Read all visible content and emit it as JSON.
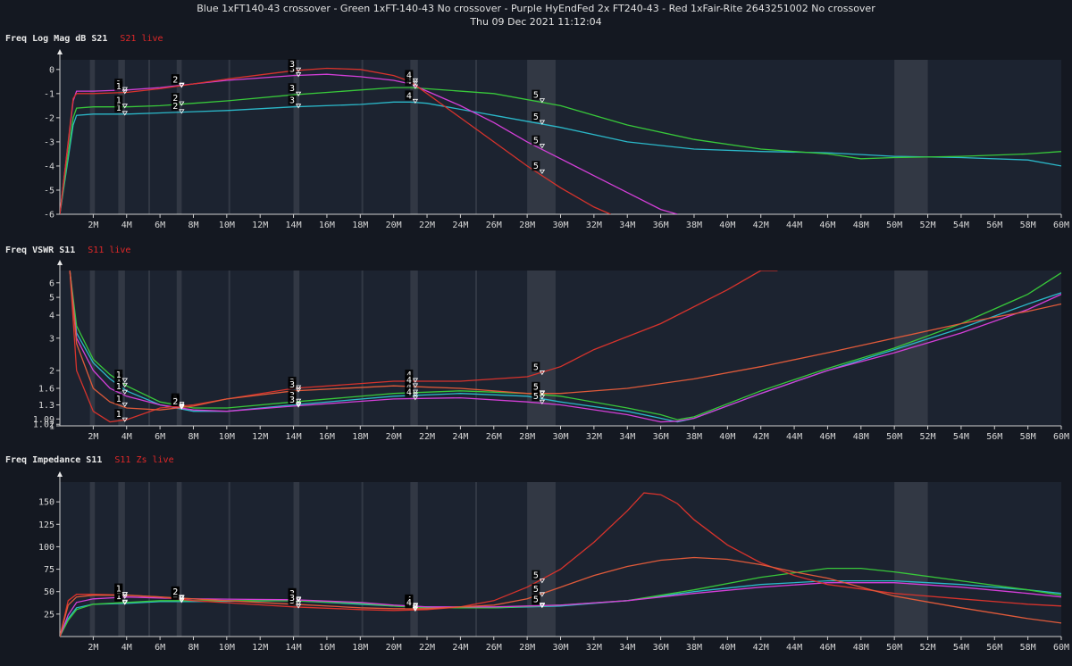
{
  "header": {
    "title": "Blue 1xFT140-43 crossover - Green 1xFT-140-43 No crossover - Purple HyEndFed 2x FT240-43 - Red 1xFair-Rite 2643251002 No crossover",
    "timestamp": "Thu 09 Dec 2021 11:12:04"
  },
  "colors": {
    "background": "#141821",
    "plot_bg": "#1c2330",
    "band": "#3a404b",
    "blue": "#2bb8c9",
    "green": "#38c83a",
    "purple": "#d43fd8",
    "red": "#d7332c",
    "orange": "#e05a3a"
  },
  "chart_data": [
    {
      "type": "line",
      "name_label": "Freq Log Mag dB S21",
      "live_label": "S21 live",
      "xlim": [
        0,
        60
      ],
      "x_unit": "MHz",
      "xticks": [
        "2M",
        "4M",
        "6M",
        "8M",
        "10M",
        "12M",
        "14M",
        "16M",
        "18M",
        "20M",
        "22M",
        "24M",
        "26M",
        "28M",
        "30M",
        "32M",
        "34M",
        "36M",
        "38M",
        "40M",
        "42M",
        "44M",
        "46M",
        "48M",
        "50M",
        "52M",
        "54M",
        "56M",
        "58M",
        "60M"
      ],
      "ylim": [
        -6,
        0.4
      ],
      "yticks": [
        "0",
        "-1",
        "-2",
        "-3",
        "-4",
        "-5",
        "-6"
      ],
      "series": [
        {
          "color": "blue",
          "x": [
            0,
            0.8,
            1,
            2,
            4,
            6,
            8,
            10,
            14,
            18,
            20,
            21,
            22,
            26,
            30,
            34,
            38,
            42,
            46,
            50,
            54,
            58,
            60
          ],
          "y": [
            -6,
            -2.3,
            -1.9,
            -1.85,
            -1.85,
            -1.8,
            -1.75,
            -1.7,
            -1.55,
            -1.45,
            -1.35,
            -1.35,
            -1.4,
            -1.9,
            -2.4,
            -3.0,
            -3.3,
            -3.4,
            -3.45,
            -3.6,
            -3.65,
            -3.75,
            -4.0
          ]
        },
        {
          "color": "green",
          "x": [
            0,
            0.8,
            1,
            2,
            4,
            6,
            8,
            10,
            14,
            18,
            20,
            21,
            22,
            26,
            30,
            34,
            38,
            42,
            46,
            48,
            50,
            54,
            58,
            60
          ],
          "y": [
            -6,
            -2.0,
            -1.6,
            -1.55,
            -1.55,
            -1.5,
            -1.4,
            -1.3,
            -1.05,
            -0.85,
            -0.75,
            -0.75,
            -0.8,
            -1.0,
            -1.5,
            -2.3,
            -2.9,
            -3.3,
            -3.5,
            -3.7,
            -3.65,
            -3.6,
            -3.5,
            -3.4
          ]
        },
        {
          "color": "purple",
          "x": [
            0,
            0.8,
            1,
            2,
            4,
            6,
            8,
            10,
            14,
            16,
            18,
            20,
            21,
            22,
            24,
            26,
            28,
            30,
            32,
            34,
            36,
            37
          ],
          "y": [
            -6,
            -1.3,
            -0.9,
            -0.9,
            -0.85,
            -0.75,
            -0.6,
            -0.45,
            -0.25,
            -0.2,
            -0.3,
            -0.45,
            -0.6,
            -0.9,
            -1.5,
            -2.2,
            -3.0,
            -3.7,
            -4.4,
            -5.1,
            -5.8,
            -6.0
          ]
        },
        {
          "color": "red",
          "x": [
            0,
            0.8,
            1,
            2,
            4,
            6,
            8,
            10,
            14,
            16,
            18,
            20,
            21,
            22,
            24,
            26,
            28,
            30,
            32,
            33
          ],
          "y": [
            -6,
            -1.2,
            -1.0,
            -1.0,
            -0.95,
            -0.8,
            -0.6,
            -0.4,
            -0.05,
            0.05,
            0.0,
            -0.25,
            -0.5,
            -1.0,
            -2.0,
            -3.0,
            -4.0,
            -4.9,
            -5.7,
            -6.0
          ]
        }
      ],
      "markers": [
        {
          "id": "1",
          "x": 3.6
        },
        {
          "id": "2",
          "x": 7
        },
        {
          "id": "3",
          "x": 14
        },
        {
          "id": "4",
          "x": 21
        },
        {
          "id": "5",
          "x": 28.6
        }
      ]
    },
    {
      "type": "line",
      "name_label": "Freq VSWR S11",
      "live_label": "S11 live",
      "xlim": [
        0,
        60
      ],
      "x_unit": "MHz",
      "xticks": [
        "2M",
        "4M",
        "6M",
        "8M",
        "10M",
        "12M",
        "14M",
        "16M",
        "18M",
        "20M",
        "22M",
        "24M",
        "26M",
        "28M",
        "30M",
        "32M",
        "34M",
        "36M",
        "38M",
        "40M",
        "42M",
        "44M",
        "46M",
        "48M",
        "50M",
        "52M",
        "54M",
        "56M",
        "58M",
        "60M"
      ],
      "ylim": [
        1.0,
        7.0
      ],
      "y_scale": "log",
      "yticks": [
        "6",
        "5",
        "4",
        "3",
        "2",
        "1.6",
        "1.3",
        "1.09",
        "1.02",
        "1"
      ],
      "ytick_values": [
        6,
        5,
        4,
        3,
        2,
        1.6,
        1.3,
        1.09,
        1.02,
        1.0
      ],
      "series": [
        {
          "color": "blue",
          "x": [
            0.6,
            1,
            2,
            3,
            4,
            6,
            8,
            10,
            14,
            20,
            24,
            28,
            30,
            34,
            36,
            37,
            38,
            42,
            46,
            50,
            54,
            58,
            60
          ],
          "y": [
            7,
            3.2,
            2.2,
            1.8,
            1.55,
            1.3,
            1.2,
            1.2,
            1.3,
            1.45,
            1.5,
            1.45,
            1.35,
            1.2,
            1.1,
            1.05,
            1.1,
            1.5,
            2.0,
            2.6,
            3.4,
            4.6,
            5.3
          ]
        },
        {
          "color": "green",
          "x": [
            0.6,
            1,
            2,
            3,
            4,
            6,
            8,
            10,
            14,
            20,
            24,
            28,
            30,
            34,
            36,
            37,
            38,
            42,
            46,
            50,
            54,
            58,
            60
          ],
          "y": [
            7,
            3.5,
            2.3,
            1.9,
            1.65,
            1.35,
            1.25,
            1.25,
            1.35,
            1.5,
            1.55,
            1.5,
            1.45,
            1.25,
            1.15,
            1.08,
            1.12,
            1.55,
            2.05,
            2.65,
            3.6,
            5.2,
            6.8
          ]
        },
        {
          "color": "purple",
          "x": [
            0.6,
            1,
            2,
            3,
            4,
            6,
            8,
            10,
            14,
            20,
            24,
            28,
            30,
            34,
            36,
            37,
            38,
            42,
            46,
            50,
            54,
            58,
            60
          ],
          "y": [
            7,
            3.0,
            2.0,
            1.6,
            1.45,
            1.3,
            1.22,
            1.2,
            1.28,
            1.4,
            1.42,
            1.35,
            1.3,
            1.15,
            1.05,
            1.06,
            1.1,
            1.5,
            2.0,
            2.5,
            3.2,
            4.3,
            5.2
          ]
        },
        {
          "color": "red",
          "x": [
            0.6,
            1,
            2,
            3,
            4,
            6,
            8,
            10,
            14,
            20,
            24,
            28,
            30,
            32,
            36,
            40,
            42,
            43
          ],
          "y": [
            7,
            2.0,
            1.2,
            1.05,
            1.08,
            1.25,
            1.3,
            1.4,
            1.6,
            1.75,
            1.75,
            1.85,
            2.1,
            2.6,
            3.6,
            5.5,
            7.0,
            7.0
          ]
        },
        {
          "color": "orange",
          "x": [
            0.6,
            1,
            2,
            3,
            4,
            6,
            8,
            10,
            14,
            20,
            24,
            28,
            30,
            34,
            38,
            42,
            46,
            50,
            54,
            56,
            58,
            60
          ],
          "y": [
            7,
            2.8,
            1.6,
            1.35,
            1.25,
            1.22,
            1.28,
            1.4,
            1.55,
            1.65,
            1.6,
            1.5,
            1.5,
            1.6,
            1.8,
            2.1,
            2.5,
            3.0,
            3.6,
            3.9,
            4.2,
            4.6
          ]
        }
      ],
      "markers": [
        {
          "id": "1",
          "x": 3.6
        },
        {
          "id": "2",
          "x": 7
        },
        {
          "id": "3",
          "x": 14
        },
        {
          "id": "4",
          "x": 21
        },
        {
          "id": "5",
          "x": 28.6
        }
      ]
    },
    {
      "type": "line",
      "name_label": "Freq Impedance S11",
      "live_label": "S11 Zs live",
      "xlim": [
        0,
        60
      ],
      "x_unit": "MHz",
      "xticks": [
        "2M",
        "4M",
        "6M",
        "8M",
        "10M",
        "12M",
        "14M",
        "16M",
        "18M",
        "20M",
        "22M",
        "24M",
        "26M",
        "28M",
        "30M",
        "32M",
        "34M",
        "36M",
        "38M",
        "40M",
        "42M",
        "44M",
        "46M",
        "48M",
        "50M",
        "52M",
        "54M",
        "56M",
        "58M",
        "60M"
      ],
      "ylim": [
        0,
        172
      ],
      "y_unit": "ohm",
      "yticks": [
        "150",
        "125",
        "100",
        "75",
        "50",
        "25"
      ],
      "ytick_values": [
        150,
        125,
        100,
        75,
        50,
        25
      ],
      "series": [
        {
          "color": "blue",
          "x": [
            0,
            0.5,
            1,
            2,
            4,
            6,
            8,
            14,
            18,
            20,
            22,
            26,
            30,
            34,
            38,
            42,
            46,
            50,
            54,
            58,
            60
          ],
          "y": [
            0,
            20,
            32,
            36,
            37,
            39,
            39,
            40,
            36,
            34,
            33,
            32,
            34,
            40,
            50,
            58,
            62,
            62,
            58,
            52,
            48
          ]
        },
        {
          "color": "green",
          "x": [
            0,
            0.5,
            1,
            2,
            4,
            6,
            8,
            14,
            18,
            20,
            22,
            26,
            30,
            34,
            38,
            42,
            46,
            48,
            50,
            54,
            58,
            60
          ],
          "y": [
            0,
            18,
            30,
            36,
            38,
            40,
            40,
            40,
            37,
            34,
            32,
            32,
            35,
            40,
            52,
            66,
            76,
            76,
            72,
            62,
            52,
            46
          ]
        },
        {
          "color": "purple",
          "x": [
            0,
            0.5,
            1,
            2,
            4,
            6,
            8,
            14,
            18,
            20,
            22,
            26,
            30,
            34,
            38,
            42,
            46,
            50,
            54,
            58,
            60
          ],
          "y": [
            0,
            24,
            38,
            42,
            44,
            43,
            42,
            41,
            38,
            35,
            33,
            33,
            35,
            40,
            48,
            55,
            60,
            60,
            55,
            48,
            44
          ]
        },
        {
          "color": "red",
          "x": [
            0,
            0.5,
            1,
            2,
            4,
            6,
            8,
            14,
            18,
            20,
            22,
            24,
            26,
            28,
            30,
            32,
            34,
            35,
            36,
            37,
            38,
            40,
            42,
            44,
            46,
            50,
            54,
            58,
            60
          ],
          "y": [
            0,
            40,
            47,
            47,
            46,
            44,
            40,
            33,
            30,
            29,
            30,
            33,
            40,
            55,
            75,
            105,
            140,
            160,
            158,
            148,
            130,
            102,
            82,
            68,
            58,
            48,
            42,
            36,
            34
          ]
        },
        {
          "color": "orange",
          "x": [
            0,
            0.5,
            1,
            2,
            4,
            6,
            8,
            14,
            18,
            20,
            22,
            26,
            28,
            30,
            32,
            34,
            36,
            38,
            40,
            42,
            44,
            46,
            50,
            54,
            58,
            60
          ],
          "y": [
            0,
            35,
            44,
            46,
            46,
            44,
            42,
            36,
            32,
            31,
            31,
            35,
            42,
            55,
            68,
            78,
            85,
            88,
            86,
            80,
            72,
            65,
            45,
            32,
            20,
            15
          ]
        }
      ],
      "markers": [
        {
          "id": "1",
          "x": 3.6
        },
        {
          "id": "2",
          "x": 7
        },
        {
          "id": "3",
          "x": 14
        },
        {
          "id": "4",
          "x": 21
        },
        {
          "id": "5",
          "x": 28.6
        }
      ]
    }
  ]
}
